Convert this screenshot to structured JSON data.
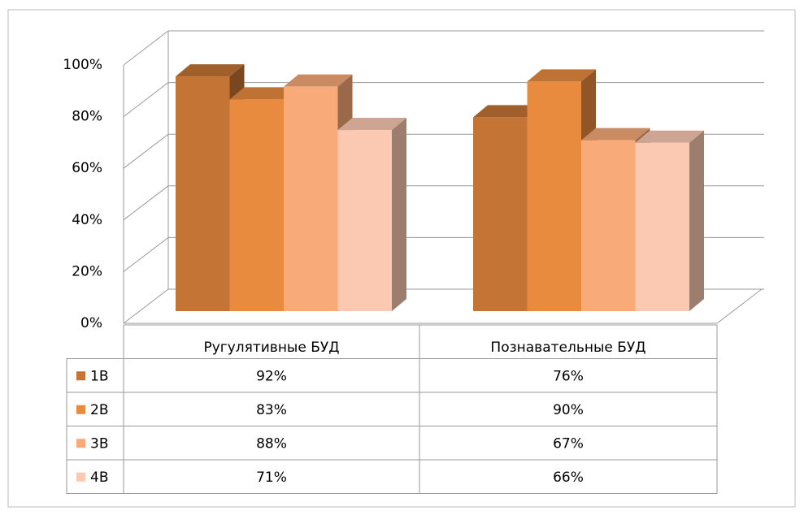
{
  "chart_data": {
    "type": "bar3d",
    "categories": [
      "Ругулятивные БУД",
      "Познавательные БУД"
    ],
    "series": [
      {
        "name": "1В",
        "color": "#c47434",
        "values": [
          92,
          76
        ],
        "value_labels": [
          "92%",
          "76%"
        ]
      },
      {
        "name": "2В",
        "color": "#e88b3f",
        "values": [
          83,
          90
        ],
        "value_labels": [
          "83%",
          "90%"
        ]
      },
      {
        "name": "3В",
        "color": "#f8aa78",
        "values": [
          88,
          67
        ],
        "value_labels": [
          "88%",
          "67%"
        ]
      },
      {
        "name": "4В",
        "color": "#fbc9b2",
        "values": [
          71,
          66
        ],
        "value_labels": [
          "71%",
          "66%"
        ]
      }
    ],
    "ylim": [
      0,
      100
    ],
    "yticks": [
      {
        "value": 0,
        "label": "0%"
      },
      {
        "value": 20,
        "label": "20%"
      },
      {
        "value": 40,
        "label": "40%"
      },
      {
        "value": 60,
        "label": "60%"
      },
      {
        "value": 80,
        "label": "80%"
      },
      {
        "value": 100,
        "label": "100%"
      }
    ],
    "grid": true
  }
}
